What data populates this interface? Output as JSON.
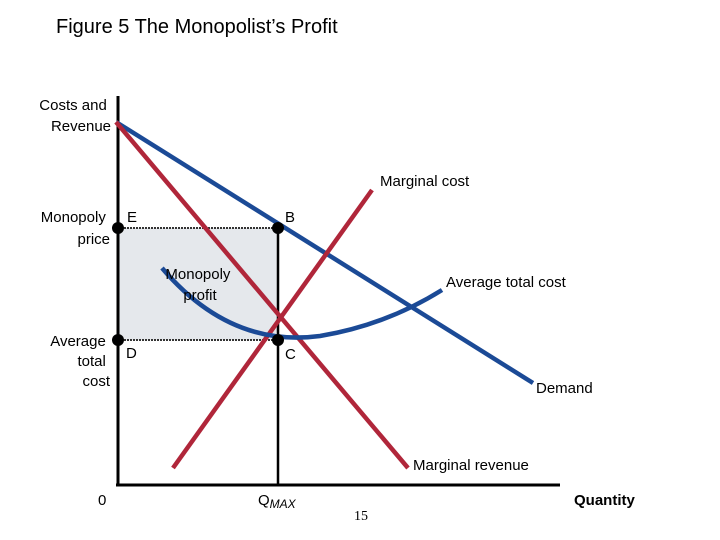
{
  "figure": {
    "title": "Figure 5 The Monopolist’s Profit",
    "y_axis_label": [
      "Costs and",
      "Revenue"
    ],
    "x_axis_label": "Quantity",
    "origin_label": "0",
    "qmax_label": {
      "main": "Q",
      "sub": "MAX"
    },
    "page_number": "15"
  },
  "curves": {
    "marginal_cost": "Marginal cost",
    "average_total_cost": "Average total cost",
    "demand": "Demand",
    "marginal_revenue": "Marginal revenue"
  },
  "y_labels": {
    "monopoly_price": [
      "Monopoly",
      "price"
    ],
    "average_total_cost": [
      "Average",
      "total",
      "cost"
    ]
  },
  "points": {
    "E": "E",
    "B": "B",
    "D": "D",
    "C": "C"
  },
  "profit_label": [
    "Monopoly",
    "profit"
  ],
  "colors": {
    "demand": "#1b4a96",
    "cost": "#b0263a",
    "profit_fill": "#e5e8ec"
  }
}
